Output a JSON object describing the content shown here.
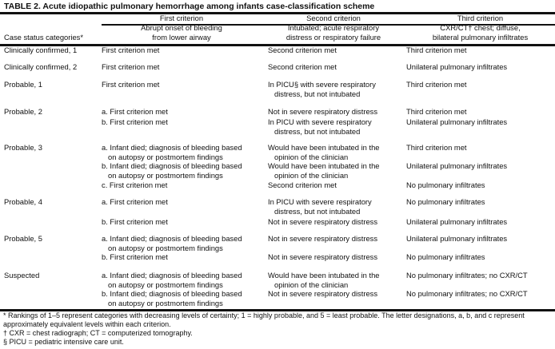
{
  "title": "TABLE 2. Acute idiopathic pulmonary hemorrhage among infants case-classification scheme",
  "header": {
    "category_label": "Case status categories*",
    "groups": [
      "First criterion",
      "Second criterion",
      "Third criterion"
    ],
    "subheaders": [
      "Abrupt onset of bleeding\nfrom lower airway",
      "Intubated; acute respiratory\ndistress or respiratory failure",
      "CXR/CT† chest; diffuse,\nbilateral pulmonary infiltrates"
    ]
  },
  "rows": [
    {
      "category": "Clinically confirmed, 1",
      "entries": [
        {
          "first": "First criterion met",
          "second": "Second criterion met",
          "third": "Third criterion met"
        }
      ]
    },
    {
      "category": "Clinically confirmed, 2",
      "entries": [
        {
          "first": "First criterion met",
          "second": "Second criterion met",
          "third": "Unilateral pulmonary infiltrates"
        }
      ]
    },
    {
      "category": "Probable, 1",
      "entries": [
        {
          "first": "First criterion met",
          "second": "In PICU§ with severe respiratory\ndistress, but not intubated",
          "third": "Third criterion met"
        }
      ]
    },
    {
      "category": "Probable, 2",
      "entries": [
        {
          "first": "a. First criterion met",
          "second": "Not in severe respiratory distress",
          "third": "Third criterion met"
        },
        {
          "first": "b. First criterion met",
          "second": "In PICU with severe respiratory\ndistress, but not intubated",
          "third": "Unilateral pulmonary infiltrates"
        }
      ]
    },
    {
      "category": "Probable, 3",
      "entries": [
        {
          "first": "a. Infant died; diagnosis of bleeding based\non autopsy or postmortem findings",
          "second": "Would have been intubated in the\nopinion of the clinician",
          "third": "Third criterion met"
        },
        {
          "first": "b. Infant died; diagnosis of bleeding based\non autopsy or postmortem findings",
          "second": "Would have been intubated in the\nopinion of the clinician",
          "third": "Unilateral pulmonary infiltrates"
        },
        {
          "first": "c. First criterion met",
          "second": "Second criterion met",
          "third": "No pulmonary infiltrates"
        }
      ]
    },
    {
      "category": "Probable, 4",
      "entries": [
        {
          "first": "a. First criterion met",
          "second": "In PICU with severe respiratory\ndistress, but not intubated",
          "third": "No pulmonary infiltrates"
        },
        {
          "first": "b. First criterion met",
          "second": "Not in severe respiratory distress",
          "third": "Unilateral pulmonary infiltrates"
        }
      ]
    },
    {
      "category": "Probable, 5",
      "entries": [
        {
          "first": "a. Infant died; diagnosis of bleeding based\non autopsy or postmortem findings",
          "second": "Not in severe respiratory distress",
          "third": "Unilateral pulmonary infiltrates"
        },
        {
          "first": "b. First criterion met",
          "second": "Not in severe respiratory distress",
          "third": "No pulmonary infiltrates"
        }
      ]
    },
    {
      "category": "Suspected",
      "entries": [
        {
          "first": "a. Infant died; diagnosis of bleeding based\non autopsy or postmortem findings",
          "second": "Would have been intubated in the\nopinion of the clinician",
          "third": "No pulmonary infiltrates; no CXR/CT"
        },
        {
          "first": "b. Infant died; diagnosis of bleeding based\non autopsy or postmortem findings",
          "second": "Not in severe respiratory distress",
          "third": "No pulmonary infiltrates; no CXR/CT"
        }
      ]
    }
  ],
  "footnotes": [
    "* Rankings of 1–5 represent categories with decreasing levels of certainty; 1 = highly probable, and 5 = least probable. The letter designations, a, b, and c represent approximately equivalent levels within each criterion.",
    "† CXR = chest radiograph; CT = computerized tomography.",
    "§ PICU = pediatric intensive care unit."
  ]
}
